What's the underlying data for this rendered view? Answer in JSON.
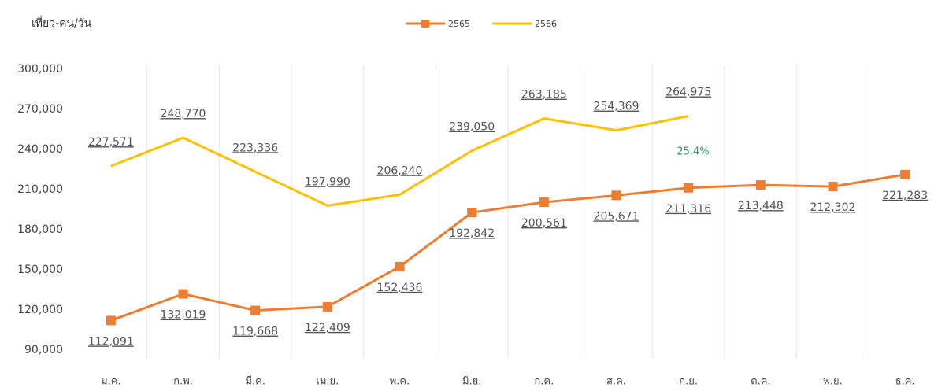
{
  "chart_data": {
    "type": "line",
    "y_label": "เที่ยว-คน/วัน",
    "categories": [
      "ม.ค.",
      "ก.พ.",
      "มี.ค.",
      "เม.ย.",
      "พ.ค.",
      "มิ.ย.",
      "ก.ค.",
      "ส.ค.",
      "ก.ย.",
      "ต.ค.",
      "พ.ย.",
      "ธ.ค."
    ],
    "series": [
      {
        "name": "2565",
        "color": "#ed7d31",
        "marker": "square",
        "values": [
          112091,
          132019,
          119668,
          122409,
          152436,
          192842,
          200561,
          205671,
          211316,
          213448,
          212302,
          221283
        ],
        "value_labels": [
          "112,091",
          "132,019",
          "119,668",
          "122,409",
          "152,436",
          "192,842",
          "200,561",
          "205,671",
          "211,316",
          "213,448",
          "212,302",
          "221,283"
        ]
      },
      {
        "name": "2566",
        "color": "#ffc000",
        "values": [
          227571,
          248770,
          223336,
          197990,
          206240,
          239050,
          263185,
          254369,
          264975,
          null,
          null,
          null
        ],
        "value_labels": [
          "227,571",
          "248,770",
          "223,336",
          "197,990",
          "206,240",
          "239,050",
          "263,185",
          "254,369",
          "264,975",
          null,
          null,
          null
        ]
      }
    ],
    "annotation": "25.4%",
    "ylim": [
      90000,
      300000
    ],
    "yticks": [
      {
        "value": 90000,
        "label": "90,000"
      },
      {
        "value": 120000,
        "label": "120,000"
      },
      {
        "value": 150000,
        "label": "150,000"
      },
      {
        "value": 180000,
        "label": "180,000"
      },
      {
        "value": 210000,
        "label": "210,000"
      },
      {
        "value": 240000,
        "label": "240,000"
      },
      {
        "value": 270000,
        "label": "270,000"
      },
      {
        "value": 300000,
        "label": "300,000"
      }
    ],
    "legend": "top"
  }
}
